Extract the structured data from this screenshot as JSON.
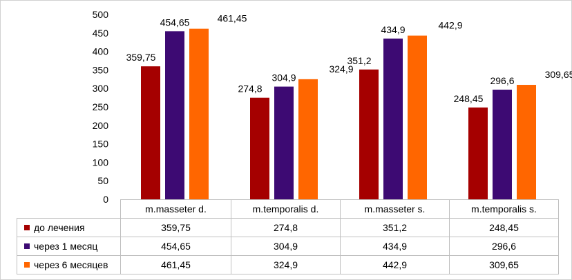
{
  "chart_data": {
    "type": "bar",
    "categories": [
      "m.masseter d.",
      "m.temporalis d.",
      "m.masseter s.",
      "m.temporalis s."
    ],
    "series": [
      {
        "name": "до лечения",
        "color": "#a50000",
        "values": [
          359.75,
          274.8,
          351.2,
          248.45
        ],
        "labels": [
          "359,75",
          "274,8",
          "351,2",
          "248,45"
        ]
      },
      {
        "name": "через 1 месяц",
        "color": "#3d0a73",
        "values": [
          454.65,
          304.9,
          434.9,
          296.6
        ],
        "labels": [
          "454,65",
          "304,9",
          "434,9",
          "296,6"
        ]
      },
      {
        "name": "через 6 месяцев",
        "color": "#ff6600",
        "values": [
          461.45,
          324.9,
          442.9,
          309.65
        ],
        "labels": [
          "461,45",
          "324,9",
          "442,9",
          "309,65"
        ]
      }
    ],
    "ylim": [
      0,
      500
    ],
    "yticks": [
      0,
      50,
      100,
      150,
      200,
      250,
      300,
      350,
      400,
      450,
      500
    ],
    "grid": false,
    "legend": "data-table"
  }
}
